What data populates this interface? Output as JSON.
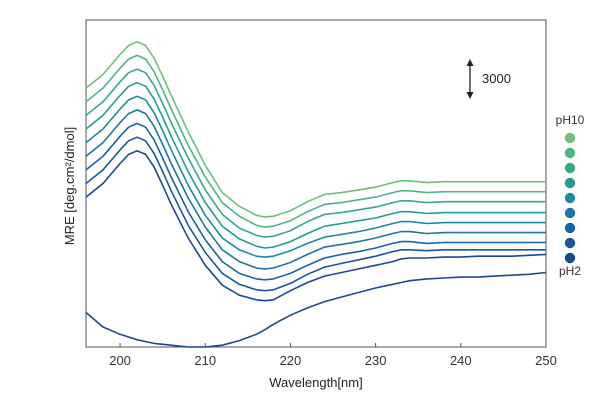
{
  "chart_data": {
    "type": "line",
    "title": "",
    "xlabel": "Wavelength[nm]",
    "ylabel": "MRE [deg.cm²/dmol]",
    "xlim": [
      196,
      250
    ],
    "ylim": [
      -33000,
      3000
    ],
    "x_ticks": [
      200,
      210,
      220,
      230,
      240,
      250
    ],
    "y_ticks_shown": false,
    "grid": false,
    "legend": {
      "placement": "right",
      "top_label": "pH10",
      "bottom_label": "pH2"
    },
    "scale_bar": {
      "label": "3000",
      "value": 3000
    },
    "x": [
      196,
      198,
      200,
      201,
      202,
      203,
      204,
      205,
      206,
      208,
      210,
      212,
      214,
      216,
      217,
      218,
      220,
      222,
      224,
      226,
      228,
      230,
      232,
      233,
      234,
      236,
      238,
      240,
      242,
      244,
      246,
      248,
      250
    ],
    "series": [
      {
        "color": "#6cc07a",
        "values": [
          -4500,
          -3000,
          -800,
          200,
          600,
          200,
          -1200,
          -3200,
          -5300,
          -9300,
          -13000,
          -16000,
          -17500,
          -18500,
          -18700,
          -18600,
          -18000,
          -17000,
          -16200,
          -16000,
          -15700,
          -15400,
          -14900,
          -14700,
          -14700,
          -14900,
          -14800,
          -14800,
          -14800,
          -14800,
          -14800,
          -14800,
          -14800
        ]
      },
      {
        "color": "#4fb582",
        "values": [
          -6000,
          -4500,
          -2300,
          -1300,
          -900,
          -1300,
          -2700,
          -4700,
          -6800,
          -10800,
          -14300,
          -17100,
          -18600,
          -19600,
          -19800,
          -19700,
          -19100,
          -18100,
          -17300,
          -17100,
          -16800,
          -16500,
          -16000,
          -15800,
          -15800,
          -16000,
          -15900,
          -15900,
          -15900,
          -15900,
          -15900,
          -15900,
          -15900
        ]
      },
      {
        "color": "#33a98a",
        "values": [
          -7500,
          -6000,
          -3800,
          -2800,
          -2400,
          -2800,
          -4200,
          -6200,
          -8300,
          -12200,
          -15700,
          -18400,
          -19900,
          -20700,
          -20900,
          -20800,
          -20200,
          -19200,
          -18400,
          -18200,
          -17900,
          -17600,
          -17100,
          -16900,
          -16900,
          -17100,
          -17000,
          -17000,
          -17000,
          -17000,
          -17000,
          -17000,
          -17000
        ]
      },
      {
        "color": "#229c93",
        "values": [
          -9000,
          -7500,
          -5300,
          -4300,
          -3900,
          -4300,
          -5700,
          -7700,
          -9800,
          -13700,
          -17100,
          -19700,
          -21100,
          -21900,
          -22100,
          -22000,
          -21400,
          -20500,
          -19700,
          -19400,
          -19100,
          -18800,
          -18300,
          -18100,
          -18100,
          -18300,
          -18200,
          -18200,
          -18200,
          -18200,
          -18200,
          -18200,
          -18200
        ]
      },
      {
        "color": "#1c8aa0",
        "values": [
          -10500,
          -9000,
          -6800,
          -5800,
          -5400,
          -5800,
          -7200,
          -9200,
          -11300,
          -15200,
          -18500,
          -21000,
          -22300,
          -23000,
          -23100,
          -23000,
          -22400,
          -21600,
          -20900,
          -20600,
          -20300,
          -19900,
          -19400,
          -19200,
          -19200,
          -19400,
          -19300,
          -19300,
          -19300,
          -19300,
          -19300,
          -19300,
          -19300
        ]
      },
      {
        "color": "#1a76a6",
        "values": [
          -12000,
          -10500,
          -8300,
          -7300,
          -6900,
          -7300,
          -8700,
          -10700,
          -12800,
          -16600,
          -19800,
          -22300,
          -23600,
          -24300,
          -24400,
          -24300,
          -23700,
          -22800,
          -22000,
          -21700,
          -21400,
          -21000,
          -20500,
          -20300,
          -20300,
          -20500,
          -20400,
          -20400,
          -20400,
          -20400,
          -20400,
          -20400,
          -20400
        ]
      },
      {
        "color": "#1862a6",
        "values": [
          -13500,
          -12000,
          -9800,
          -8800,
          -8400,
          -8800,
          -10200,
          -12200,
          -14300,
          -18100,
          -21200,
          -23600,
          -24900,
          -25500,
          -25600,
          -25500,
          -24900,
          -24000,
          -23200,
          -22800,
          -22500,
          -22100,
          -21600,
          -21400,
          -21400,
          -21600,
          -21500,
          -21500,
          -21500,
          -21500,
          -21500,
          -21500,
          -21500
        ]
      },
      {
        "color": "#1a54a0",
        "values": [
          -15000,
          -13500,
          -11300,
          -10300,
          -9900,
          -10300,
          -11700,
          -13700,
          -15800,
          -19600,
          -22600,
          -24900,
          -26100,
          -26700,
          -26800,
          -26700,
          -26000,
          -25000,
          -24200,
          -23800,
          -23400,
          -23000,
          -22500,
          -22300,
          -22300,
          -22400,
          -22300,
          -22300,
          -22300,
          -22300,
          -22300,
          -22300,
          -22300
        ]
      },
      {
        "color": "#1c4797",
        "values": [
          -16500,
          -15000,
          -12800,
          -11800,
          -11400,
          -11800,
          -13200,
          -15200,
          -17300,
          -21000,
          -24000,
          -26200,
          -27300,
          -27800,
          -27900,
          -27800,
          -26800,
          -25900,
          -25200,
          -24800,
          -24400,
          -24000,
          -23600,
          -23300,
          -23200,
          -23200,
          -23100,
          -23100,
          -23000,
          -23000,
          -23000,
          -22900,
          -22800
        ]
      },
      {
        "color": "#1c4797",
        "values": [
          -29200,
          -30800,
          -31600,
          -31900,
          -32200,
          -32400,
          -32600,
          -32700,
          -32800,
          -33000,
          -33000,
          -32800,
          -32300,
          -31600,
          -31100,
          -30500,
          -29500,
          -28700,
          -28000,
          -27500,
          -27000,
          -26500,
          -26100,
          -25900,
          -25700,
          -25500,
          -25400,
          -25300,
          -25300,
          -25200,
          -25100,
          -25000,
          -24800
        ]
      }
    ]
  }
}
